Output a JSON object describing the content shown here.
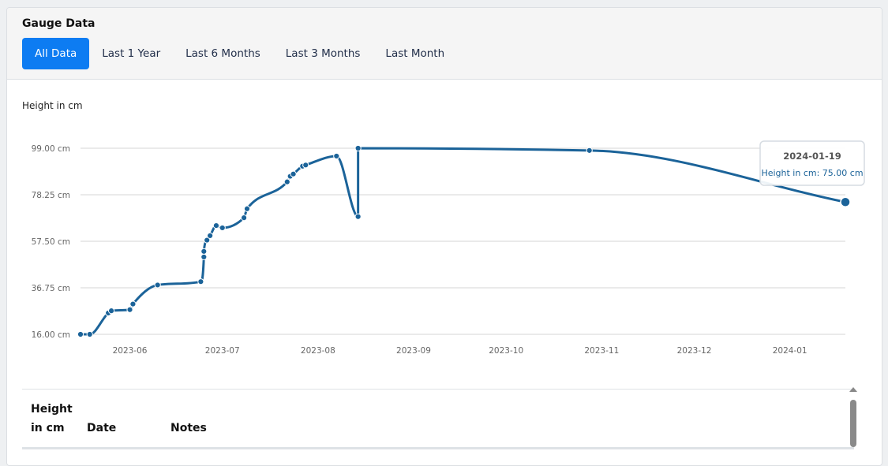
{
  "header": {
    "title": "Gauge Data",
    "tabs": [
      {
        "label": "All Data",
        "active": true
      },
      {
        "label": "Last 1 Year",
        "active": false
      },
      {
        "label": "Last 6 Months",
        "active": false
      },
      {
        "label": "Last 3 Months",
        "active": false
      },
      {
        "label": "Last Month",
        "active": false
      }
    ]
  },
  "chart_data": {
    "type": "line",
    "ylabel": "Height in cm",
    "ylim": [
      16,
      99
    ],
    "yticks": [
      "16.00 cm",
      "36.75 cm",
      "57.50 cm",
      "78.25 cm",
      "99.00 cm"
    ],
    "ytick_values": [
      16,
      36.75,
      57.5,
      78.25,
      99
    ],
    "xticks": [
      "2023-06",
      "2023-07",
      "2023-08",
      "2023-09",
      "2023-10",
      "2023-11",
      "2023-12",
      "2024-01"
    ],
    "xtick_dates": [
      "2023-06-01",
      "2023-07-01",
      "2023-08-01",
      "2023-09-01",
      "2023-10-01",
      "2023-11-01",
      "2023-12-01",
      "2024-01-01"
    ],
    "xlim": [
      "2023-05-16",
      "2024-01-19"
    ],
    "grid": true,
    "line_color": "#1b6399",
    "series": [
      {
        "x": [
          "2023-05-16",
          "2023-05-19",
          "2023-05-25",
          "2023-05-26",
          "2023-06-01",
          "2023-06-02",
          "2023-06-10",
          "2023-06-24",
          "2023-06-25",
          "2023-06-25",
          "2023-06-26",
          "2023-06-27",
          "2023-06-29",
          "2023-07-01",
          "2023-07-08",
          "2023-07-09",
          "2023-07-22",
          "2023-07-23",
          "2023-07-24",
          "2023-07-27",
          "2023-07-28",
          "2023-08-07",
          "2023-08-14",
          "2023-08-14",
          "2023-10-28",
          "2024-01-19"
        ],
        "y": [
          16,
          16,
          25.5,
          26.5,
          27,
          29.5,
          38,
          39.5,
          50.5,
          53,
          58,
          60,
          64.5,
          63.5,
          68,
          72,
          84,
          86.5,
          87.5,
          91,
          91.5,
          95.5,
          68.5,
          99,
          98,
          75
        ]
      }
    ],
    "tooltip": {
      "title": "2024-01-19",
      "label": "Height in cm: 75.00 cm"
    }
  },
  "table": {
    "columns": [
      "Height in cm",
      "Date",
      "Notes"
    ]
  }
}
